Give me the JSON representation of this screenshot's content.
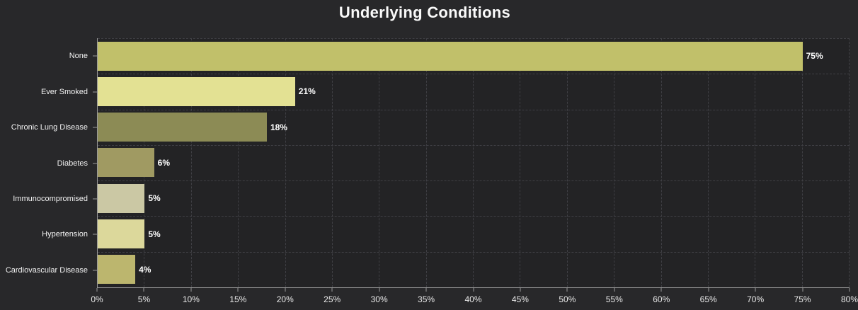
{
  "title": "Underlying Conditions",
  "chart_data": {
    "type": "bar",
    "orientation": "horizontal",
    "title": "Underlying Conditions",
    "categories": [
      "None",
      "Ever Smoked",
      "Chronic Lung Disease",
      "Diabetes",
      "Immunocompromised",
      "Hypertension",
      "Cardiovascular Disease"
    ],
    "values": [
      75,
      21,
      18,
      6,
      5,
      5,
      4
    ],
    "value_labels": [
      "75%",
      "21%",
      "18%",
      "6%",
      "5%",
      "5%",
      "4%"
    ],
    "bar_colors": [
      "#c1c06a",
      "#e3e193",
      "#8c8b55",
      "#a09a62",
      "#cbc8a4",
      "#dcd89b",
      "#bcb66e"
    ],
    "xlabel": "",
    "ylabel": "",
    "xlim": [
      0,
      80
    ],
    "x_tick_values": [
      0,
      5,
      10,
      15,
      20,
      25,
      30,
      35,
      40,
      45,
      50,
      55,
      60,
      65,
      70,
      75,
      80
    ],
    "x_tick_labels": [
      "0%",
      "5%",
      "10%",
      "15%",
      "20%",
      "25%",
      "30%",
      "35%",
      "40%",
      "45%",
      "50%",
      "55%",
      "60%",
      "65%",
      "70%",
      "75%",
      "80%"
    ],
    "grid": "dashed",
    "legend": "none"
  },
  "colors": {
    "page_background": "#28282a",
    "plot_background": "#232325",
    "grid": "#3f3f44",
    "axis": "#9a9a9a",
    "text": "#f2f2f2"
  }
}
